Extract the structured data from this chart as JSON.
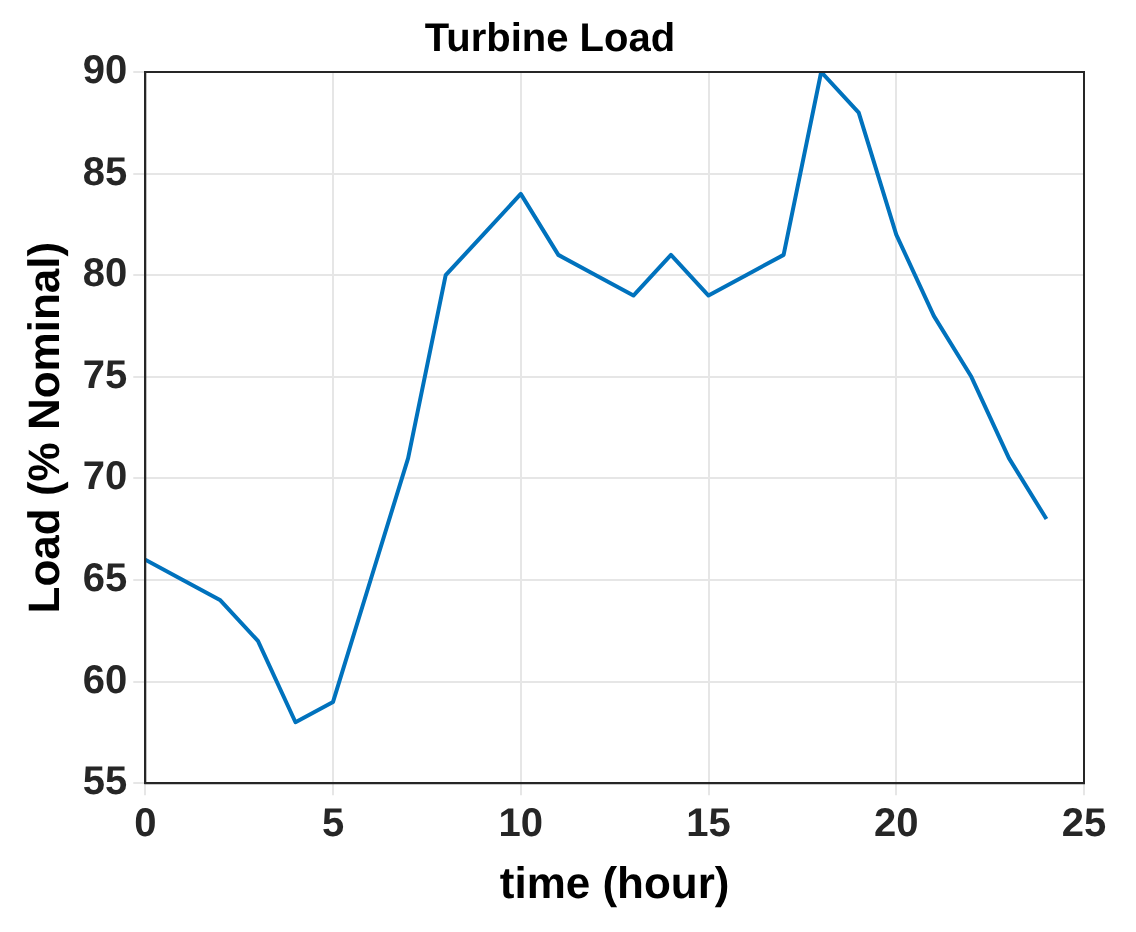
{
  "chart_data": {
    "type": "line",
    "title": "Turbine Load",
    "xlabel": "time (hour)",
    "ylabel": "Load (% Nominal)",
    "x": [
      0,
      1,
      2,
      3,
      4,
      5,
      6,
      7,
      8,
      9,
      10,
      11,
      12,
      13,
      14,
      15,
      16,
      17,
      18,
      19,
      20,
      21,
      22,
      23,
      24
    ],
    "series": [
      {
        "color": "#0072bd",
        "values": [
          66,
          65,
          64,
          62,
          58,
          59,
          65,
          71,
          80,
          82,
          84,
          81,
          80,
          79,
          81,
          79,
          80,
          81,
          90,
          88,
          82,
          78,
          75,
          71,
          68
        ]
      }
    ],
    "xlim": [
      0,
      25
    ],
    "xticks": [
      0,
      5,
      10,
      15,
      20,
      25
    ],
    "ylim": [
      55,
      90
    ],
    "yticks": [
      55,
      60,
      65,
      70,
      75,
      80,
      85,
      90
    ],
    "grid": true,
    "marker": "none",
    "line_style": "solid"
  }
}
